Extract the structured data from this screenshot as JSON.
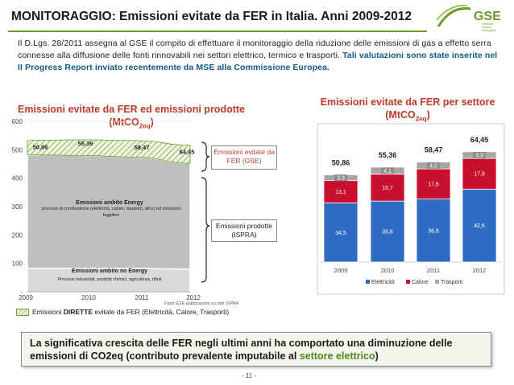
{
  "header": {
    "title": "MONITORAGGIO: Emissioni evitate da FER in Italia. Anni 2009-2012",
    "logo_text": "GSE",
    "logo_subtext": [
      "Gestore",
      "Servizi",
      "Energetici"
    ]
  },
  "intro": {
    "text": "Il D.Lgs. 28/2011 assegna al GSE il compito di effettuare il monitoraggio della riduzione delle emissioni di gas a effetto serra connesse alla diffusione delle fonti rinnovabili nei settori elettrico, termico e trasporti. ",
    "bold_text": "Tali valutazioni sono state inserite nel II Progress Report inviato recentemente da MSE alla Commissione Europea."
  },
  "left_chart_title": {
    "line1": "Emissioni evitate da FER ed emissioni prodotte",
    "line2_prefix": "(MtCO",
    "line2_sub": "2eq",
    "line2_suffix": ")"
  },
  "right_chart_title": {
    "line1": "Emissioni evitate da FER per settore",
    "line2_prefix": "(MtCO",
    "line2_sub": "2eq",
    "line2_suffix": ")"
  },
  "side_boxes": {
    "evitate": "Emissioni evitate da FER (GSE)",
    "prodotte": "Emissioni prodotte (ISPRA)"
  },
  "area_labels": {
    "energy_title": "Emissioni ambito Energy",
    "energy_sub": "processi di combustione (elettricità, calore, trasporti, altro) ed emissioni fuggitive",
    "no_energy_title": "Emissioni ambito no Energy",
    "no_energy_sub": "Processi industriali, prodotti chimici, agricoltura, rifiuti"
  },
  "source_note": "Fonti GSE elaborazioni su dati ISPRA",
  "legend_direct": {
    "prefix": "Emissioni ",
    "bold": "DIRETTE",
    "suffix": " evitate da FER (Elettricità, Calore, Trasporti)"
  },
  "conclusion": {
    "part1": "La significativa crescita delle FER negli ultimi anni ha comportato una diminuzione delle emissioni di CO2eq (contributo prevalente  imputabile al ",
    "highlight": "settore elettrico",
    "part2": ")"
  },
  "page_number": "- 11 -",
  "colors": {
    "accent_green": "#6a9a2a",
    "title_red": "#c0392b",
    "elettricita": "#2e6cc4",
    "calore": "#c8102e",
    "trasporti": "#a6a6a6"
  },
  "chart_data": [
    {
      "type": "area",
      "title": "Emissioni evitate da FER ed emissioni prodotte (MtCO2eq)",
      "x": [
        2009,
        2010,
        2011,
        2012
      ],
      "x_ticks": [
        "2009",
        "2010",
        "2011",
        "2012"
      ],
      "ylim": [
        0,
        600
      ],
      "y_ticks": [
        "-",
        "100",
        "200",
        "300",
        "400",
        "500",
        "600"
      ],
      "series": [
        {
          "name": "Emissioni ambito no Energy",
          "values": [
            82,
            82,
            82,
            80
          ]
        },
        {
          "name": "Emissioni ambito Energy",
          "values": [
            400,
            398,
            392,
            372
          ]
        },
        {
          "name": "Emissioni evitate da FER (GSE)",
          "values": [
            50.86,
            55.36,
            58.47,
            64.45
          ]
        }
      ],
      "data_labels": [
        "50,86",
        "55,36",
        "58,47",
        "64,45"
      ],
      "grid": true
    },
    {
      "type": "bar",
      "stacked": true,
      "title": "Emissioni evitate da FER per settore (MtCO2eq)",
      "categories": [
        "2009",
        "2010",
        "2011",
        "2012"
      ],
      "series": [
        {
          "name": "Elettricità",
          "values": [
            34.5,
            35.6,
            36.8,
            42.6
          ],
          "labels": [
            "34,5",
            "35,6",
            "36,8",
            "42,6"
          ]
        },
        {
          "name": "Calore",
          "values": [
            13.1,
            15.7,
            17.6,
            17.9
          ],
          "labels": [
            "13,1",
            "15,7",
            "17,6",
            "17,9"
          ]
        },
        {
          "name": "Trasporti",
          "values": [
            3.3,
            4.1,
            4.0,
            3.9
          ],
          "labels": [
            "3,3",
            "4,1",
            "4,0",
            "3,9"
          ]
        }
      ],
      "totals": [
        50.86,
        55.36,
        58.47,
        64.45
      ],
      "total_labels": [
        "50,86",
        "55,36",
        "58,47",
        "64,45"
      ],
      "legend_position": "bottom",
      "ylim": [
        0,
        70
      ]
    }
  ]
}
